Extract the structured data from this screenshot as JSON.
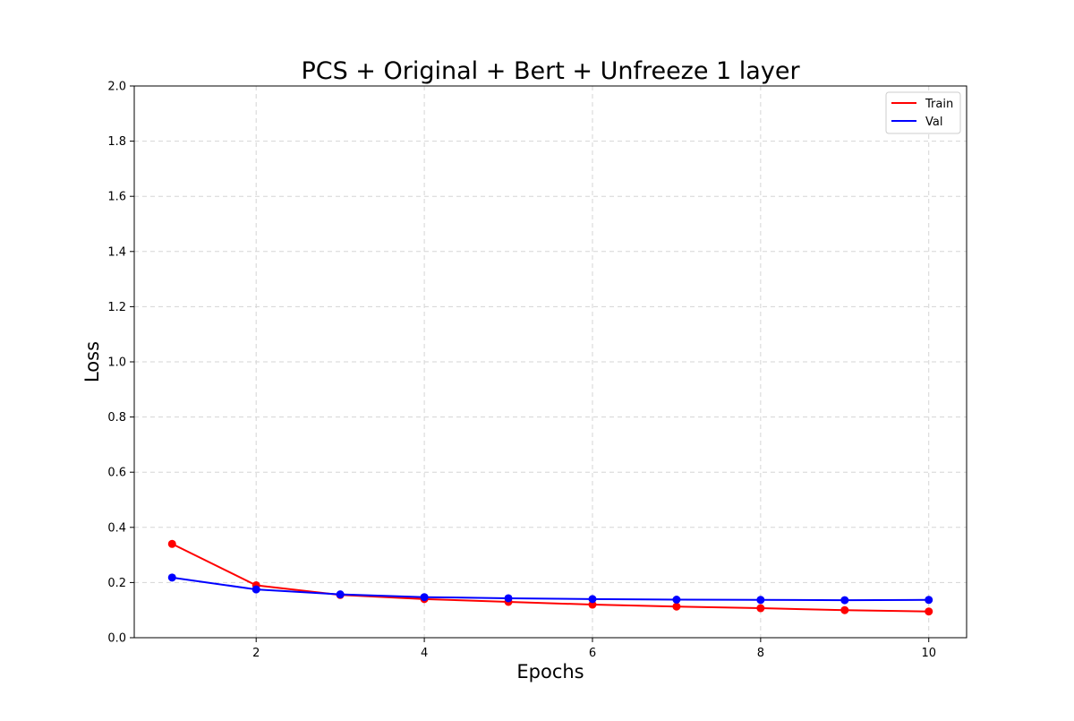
{
  "chart_data": {
    "type": "line",
    "title": "PCS + Original + Bert + Unfreeze 1 layer",
    "xlabel": "Epochs",
    "ylabel": "Loss",
    "x": [
      1,
      2,
      3,
      4,
      5,
      6,
      7,
      8,
      9,
      10
    ],
    "xlim": [
      0.55,
      10.45
    ],
    "ylim": [
      0,
      2.0
    ],
    "xticks": [
      2,
      4,
      6,
      8,
      10
    ],
    "xtick_labels": [
      "2",
      "4",
      "6",
      "8",
      "10"
    ],
    "yticks": [
      0,
      0.2,
      0.4,
      0.6,
      0.8,
      1.0,
      1.2,
      1.4,
      1.6,
      1.8,
      2.0
    ],
    "ytick_labels": [
      "0.0",
      "0.2",
      "0.4",
      "0.6",
      "0.8",
      "1.0",
      "1.2",
      "1.4",
      "1.6",
      "1.8",
      "2.0"
    ],
    "grid": true,
    "legend_position": "top-right",
    "series": [
      {
        "name": "Train",
        "color": "#ff0000",
        "marker": "circle",
        "values": [
          0.34,
          0.19,
          0.155,
          0.14,
          0.13,
          0.12,
          0.113,
          0.107,
          0.1,
          0.095
        ]
      },
      {
        "name": "Val",
        "color": "#0000ff",
        "marker": "circle",
        "values": [
          0.218,
          0.175,
          0.157,
          0.147,
          0.143,
          0.14,
          0.138,
          0.137,
          0.136,
          0.137
        ]
      }
    ]
  }
}
